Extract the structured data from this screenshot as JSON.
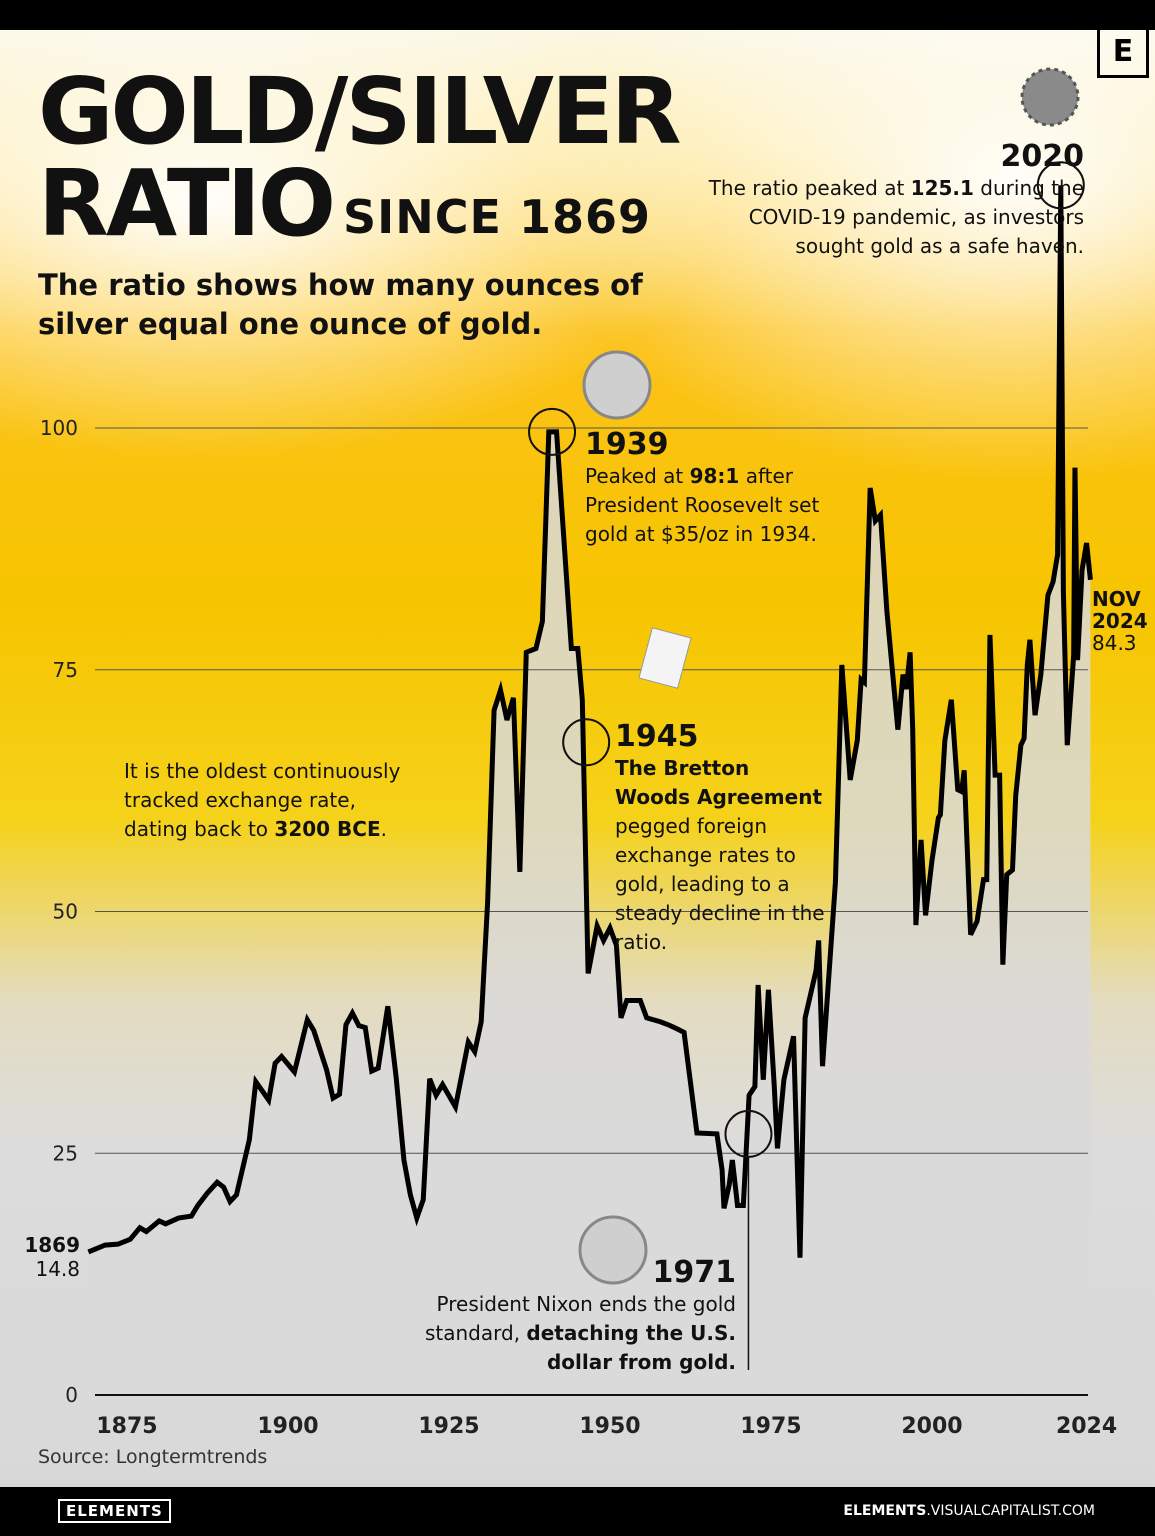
{
  "title": {
    "line1": "GOLD/SILVER",
    "line2": "RATIO",
    "line3": "SINCE 1869",
    "subtitle": "The ratio shows how many ounces of silver equal one ounce of gold."
  },
  "logo": "E",
  "annotations": {
    "a2020": {
      "year": "2020",
      "body": [
        {
          "t": "The ratio peaked at "
        },
        {
          "t": "125.1",
          "b": true
        },
        {
          "t": " during the COVID-19 pandemic, as investors sought gold as a safe haven."
        }
      ],
      "icon": "virus-icon"
    },
    "a1939": {
      "year": "1939",
      "body": [
        {
          "t": "Peaked at "
        },
        {
          "t": "98:1",
          "b": true
        },
        {
          "t": " after President Roosevelt set gold at $35/oz in 1934."
        }
      ],
      "icon": "roosevelt-coin-icon"
    },
    "a1945": {
      "year": "1945",
      "body": [
        {
          "t": "The Bretton Woods Agreement",
          "b": true
        },
        {
          "t": " pegged foreign exchange rates to gold, leading to a steady decline in the ratio."
        }
      ],
      "icon": "signing-document-icon"
    },
    "a1971": {
      "year": "1971",
      "body": [
        {
          "t": "President Nixon ends the gold standard, "
        },
        {
          "t": "detaching the U.S. dollar from gold.",
          "b": true
        }
      ],
      "icon": "nixon-coin-icon"
    },
    "oldest": {
      "body": [
        {
          "t": "It is the oldest continuously tracked exchange rate, dating back to "
        },
        {
          "t": "3200 BCE",
          "b": true
        },
        {
          "t": "."
        }
      ]
    }
  },
  "start_label": {
    "year": "1869",
    "value": "14.8"
  },
  "end_label": {
    "month": "NOV",
    "year": "2024",
    "value": "84.3"
  },
  "source": "Source: Longtermtrends",
  "footer": {
    "brand": "ELEMENTS",
    "url_bold": "ELEMENTS",
    "url_rest": ".VISUALCAPITALIST.COM"
  },
  "colors": {
    "line": "#000000",
    "accent": "#f7c400",
    "gridline": "#555555"
  },
  "chart_data": {
    "type": "line",
    "title": "GOLD/SILVER RATIO SINCE 1869",
    "xlabel": "",
    "ylabel": "",
    "xlim": [
      1869,
      2024
    ],
    "ylim": [
      0,
      125.1
    ],
    "x_ticks": [
      1875,
      1900,
      1925,
      1950,
      1975,
      2000,
      2024
    ],
    "y_ticks": [
      0,
      25,
      50,
      75,
      100
    ],
    "grid": "horizontal",
    "series": [
      {
        "points": [
          [
            1869,
            14.8
          ],
          [
            1871.6,
            15.5
          ],
          [
            1873.6,
            15.6
          ],
          [
            1875.5,
            16.1
          ],
          [
            1877,
            17.3
          ],
          [
            1878,
            16.9
          ],
          [
            1880,
            18
          ],
          [
            1881,
            17.7
          ],
          [
            1883,
            18.3
          ],
          [
            1885,
            18.5
          ],
          [
            1886,
            19.6
          ],
          [
            1887.5,
            20.9
          ],
          [
            1889,
            22
          ],
          [
            1890,
            21.5
          ],
          [
            1891,
            20
          ],
          [
            1892,
            20.7
          ],
          [
            1894,
            26.4
          ],
          [
            1895,
            32.4
          ],
          [
            1897,
            30.5
          ],
          [
            1898,
            34.3
          ],
          [
            1899,
            35
          ],
          [
            1901,
            33.4
          ],
          [
            1903,
            38.8
          ],
          [
            1904,
            37.7
          ],
          [
            1906,
            33.6
          ],
          [
            1907,
            30.7
          ],
          [
            1908,
            31.1
          ],
          [
            1909,
            38.3
          ],
          [
            1910,
            39.5
          ],
          [
            1911,
            38.2
          ],
          [
            1912,
            38
          ],
          [
            1913,
            33.5
          ],
          [
            1914,
            33.8
          ],
          [
            1915.5,
            40.2
          ],
          [
            1916.8,
            32.8
          ],
          [
            1918,
            24.3
          ],
          [
            1919,
            20.7
          ],
          [
            1920,
            18.3
          ],
          [
            1921,
            20.2
          ],
          [
            1922,
            32.7
          ],
          [
            1923,
            31
          ],
          [
            1924,
            32.1
          ],
          [
            1926,
            29.8
          ],
          [
            1928,
            36.5
          ],
          [
            1929,
            35.5
          ],
          [
            1930,
            38.6
          ],
          [
            1931,
            51
          ],
          [
            1932,
            70.8
          ],
          [
            1933,
            72.9
          ],
          [
            1934,
            69.8
          ],
          [
            1935,
            72.1
          ],
          [
            1936,
            54.1
          ],
          [
            1937,
            76.8
          ],
          [
            1938.5,
            77.2
          ],
          [
            1939.5,
            80
          ],
          [
            1940.5,
            99.6
          ],
          [
            1941.7,
            99.6
          ],
          [
            1944,
            77.2
          ],
          [
            1945,
            77.2
          ],
          [
            1945.7,
            71.9
          ],
          [
            1946.6,
            43.6
          ],
          [
            1948,
            48.5
          ],
          [
            1949,
            47
          ],
          [
            1950,
            48.3
          ],
          [
            1951,
            46.5
          ],
          [
            1951.7,
            39
          ],
          [
            1952.6,
            40.8
          ],
          [
            1954.7,
            40.8
          ],
          [
            1955.7,
            39
          ],
          [
            1957.8,
            38.6
          ],
          [
            1959,
            38.3
          ],
          [
            1960,
            38
          ],
          [
            1961.5,
            37.5
          ],
          [
            1963.5,
            27.1
          ],
          [
            1966.6,
            27
          ],
          [
            1967.4,
            23.3
          ],
          [
            1967.7,
            19.3
          ],
          [
            1968.5,
            21.7
          ],
          [
            1969,
            24.3
          ],
          [
            1969.8,
            19.6
          ],
          [
            1970.7,
            19.6
          ],
          [
            1971.6,
            31
          ],
          [
            1972.5,
            31.9
          ],
          [
            1973,
            42.4
          ],
          [
            1973.8,
            32.6
          ],
          [
            1974.6,
            41.9
          ],
          [
            1975.5,
            32
          ],
          [
            1976,
            25.5
          ],
          [
            1977,
            32.6
          ],
          [
            1978.5,
            37.1
          ],
          [
            1979.5,
            14.2
          ],
          [
            1980.3,
            39
          ],
          [
            1982,
            43.9
          ],
          [
            1982.4,
            47
          ],
          [
            1983,
            34
          ],
          [
            1985,
            53
          ],
          [
            1986,
            75.5
          ],
          [
            1987.3,
            63.6
          ],
          [
            1988.4,
            67.7
          ],
          [
            1989,
            74
          ],
          [
            1989.5,
            73.7
          ],
          [
            1990.4,
            93.8
          ],
          [
            1991.2,
            90.4
          ],
          [
            1992,
            91
          ],
          [
            1993,
            81
          ],
          [
            1994.7,
            68.8
          ],
          [
            1995.5,
            74.5
          ],
          [
            1996,
            73
          ],
          [
            1996.6,
            76.8
          ],
          [
            1997,
            69
          ],
          [
            1997.5,
            48.6
          ],
          [
            1998.3,
            57.4
          ],
          [
            1999,
            49.6
          ],
          [
            2000,
            55.3
          ],
          [
            2001,
            59.7
          ],
          [
            2001.3,
            60
          ],
          [
            2002,
            67.7
          ],
          [
            2003,
            71.9
          ],
          [
            2004,
            62.6
          ],
          [
            2004.6,
            62.4
          ],
          [
            2005,
            64.6
          ],
          [
            2006,
            47.6
          ],
          [
            2007,
            49
          ],
          [
            2008,
            53.3
          ],
          [
            2008.5,
            53.3
          ],
          [
            2009,
            78.6
          ],
          [
            2009.8,
            64.1
          ],
          [
            2010.5,
            64.1
          ],
          [
            2011,
            44.5
          ],
          [
            2011.6,
            53.8
          ],
          [
            2012.5,
            54.3
          ],
          [
            2013,
            62
          ],
          [
            2013.8,
            67.2
          ],
          [
            2014.3,
            67.9
          ],
          [
            2014.8,
            75.5
          ],
          [
            2015.2,
            78.1
          ],
          [
            2016,
            70.3
          ],
          [
            2016.9,
            74.5
          ],
          [
            2018,
            82.7
          ],
          [
            2018.8,
            84.1
          ],
          [
            2019.5,
            86.9
          ],
          [
            2020,
            125.1
          ],
          [
            2020.4,
            83
          ],
          [
            2021,
            67.2
          ],
          [
            2022,
            76.5
          ],
          [
            2022.2,
            95.9
          ],
          [
            2022.6,
            76
          ],
          [
            2023.3,
            85.3
          ],
          [
            2024,
            88.1
          ],
          [
            2024.6,
            84.3
          ]
        ]
      }
    ]
  }
}
